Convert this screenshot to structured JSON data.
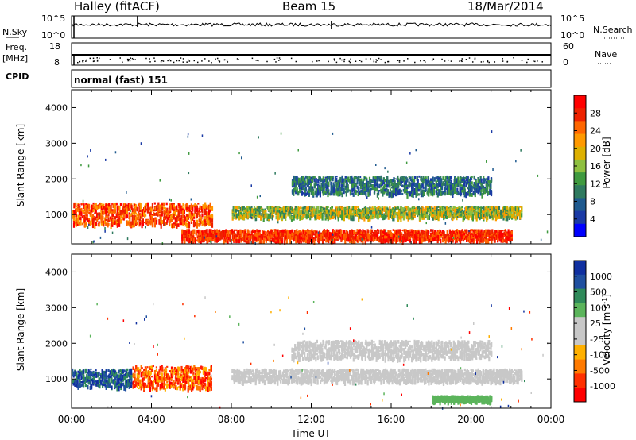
{
  "header": {
    "site": "Halley (fitACF)",
    "beam": "Beam 15",
    "date": "18/Mar/2014"
  },
  "param_panels": {
    "nsky_label": "N.Sky",
    "nsky_ticks": [
      "10^5",
      "10^0"
    ],
    "nsearch_label": "N.Search",
    "nsearch_ticks": [
      "10^5",
      "10^0"
    ],
    "freq_label": "Freq.",
    "freq_unit": "[MHz]",
    "freq_ticks": [
      "18",
      "8"
    ],
    "nave_label": "Nave",
    "nave_ticks": [
      "60",
      "0"
    ],
    "cpid_label": "CPID",
    "cpid_value": "normal (fast) 151"
  },
  "chart_data": [
    {
      "type": "heatmap",
      "name": "power",
      "ylabel": "Slant Range [km]",
      "xlabel": "",
      "xlim": [
        0,
        24
      ],
      "ylim": [
        180,
        4500
      ],
      "yticks": [
        "1000",
        "2000",
        "3000",
        "4000"
      ],
      "colorbar": {
        "label": "Power [dB]",
        "ticks": [
          "28",
          "24",
          "20",
          "16",
          "12",
          "8",
          "4"
        ],
        "colors": [
          "#ff0000",
          "#ee2200",
          "#ff6600",
          "#ff9900",
          "#ddb000",
          "#8fc040",
          "#3f9a3f",
          "#2f7a5f",
          "#1f5a8f",
          "#1a3aa5",
          "#0000ff"
        ]
      },
      "features": [
        {
          "region": "near-range band",
          "x": [
            0.0,
            7.0
          ],
          "y": [
            750,
            1350
          ],
          "value": "24-28"
        },
        {
          "region": "ionospheric band",
          "x": [
            8.0,
            22.5
          ],
          "y": [
            950,
            1250
          ],
          "value": "8-20"
        },
        {
          "region": "far band",
          "x": [
            11.0,
            21.0
          ],
          "y": [
            1600,
            2100
          ],
          "value": "4-12"
        },
        {
          "region": "low-range echoes",
          "x": [
            5.5,
            22.0
          ],
          "y": [
            300,
            600
          ],
          "value": "16-28"
        }
      ]
    },
    {
      "type": "heatmap",
      "name": "velocity",
      "ylabel": "Slant Range [km]",
      "xlabel": "Time UT",
      "xlim": [
        0,
        24
      ],
      "ylim": [
        180,
        4500
      ],
      "xticks": [
        "00:00",
        "04:00",
        "08:00",
        "12:00",
        "16:00",
        "20:00",
        "00:00"
      ],
      "yticks": [
        "1000",
        "2000",
        "3000",
        "4000"
      ],
      "colorbar": {
        "label": "Velocity [m s",
        "label_exponent": "-1",
        "label_close": "]",
        "ticks": [
          "1000",
          "500",
          "100",
          "25",
          "-25",
          "-100",
          "-500",
          "-1000"
        ],
        "colors": [
          "#1030a0",
          "#2050a0",
          "#2f8a5a",
          "#5bb45b",
          "#c8c8c8",
          "#c8c8c8",
          "#ffb000",
          "#ff7a00",
          "#ff3000",
          "#ff0000"
        ]
      },
      "features": [
        {
          "region": "near-range band (00-03 UT)",
          "x": [
            0.0,
            3.0
          ],
          "y": [
            800,
            1300
          ],
          "value": "100-1000"
        },
        {
          "region": "near-range band (03-07 UT)",
          "x": [
            3.0,
            7.0
          ],
          "y": [
            750,
            1400
          ],
          "value": "-100 to -1000"
        },
        {
          "region": "ionospheric band",
          "x": [
            8.0,
            22.5
          ],
          "y": [
            950,
            1300
          ],
          "value": "-25 to 25"
        },
        {
          "region": "far band",
          "x": [
            11.0,
            21.0
          ],
          "y": [
            1600,
            2100
          ],
          "value": "-25 to 25"
        },
        {
          "region": "low-range echoes",
          "x": [
            18.0,
            21.0
          ],
          "y": [
            400,
            550
          ],
          "value": "25-100"
        }
      ]
    }
  ]
}
